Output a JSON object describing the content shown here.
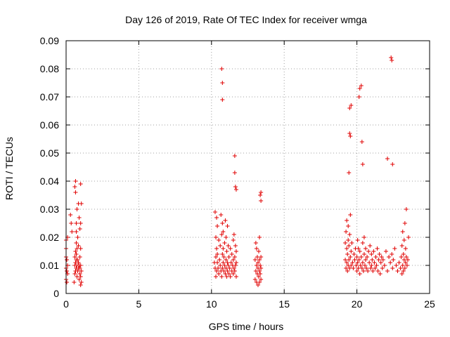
{
  "chart_data": {
    "type": "scatter",
    "title": "Day 126 of 2019, Rate Of TEC Index for receiver wmga",
    "xlabel": "GPS time / hours",
    "ylabel": "ROTI / TECUs",
    "xlim": [
      0,
      25
    ],
    "ylim": [
      0,
      0.09
    ],
    "xticks": [
      "0",
      "5",
      "10",
      "15",
      "20",
      "25"
    ],
    "yticks": [
      "0",
      "0.01",
      "0.02",
      "0.03",
      "0.04",
      "0.05",
      "0.06",
      "0.07",
      "0.08",
      "0.09"
    ],
    "grid": true,
    "marker": "+",
    "color": "#e00000",
    "series": [
      {
        "x": [
          0.0,
          0.0,
          0.0,
          0.0,
          0.0,
          0.05,
          0.05,
          0.05,
          0.1,
          0.1,
          0.1,
          0.3,
          0.35,
          0.4,
          0.55,
          0.6,
          0.6,
          0.6,
          0.6,
          0.65,
          0.65,
          0.65,
          0.65,
          0.65,
          0.7,
          0.7,
          0.7,
          0.7,
          0.7,
          0.7,
          0.75,
          0.75,
          0.75,
          0.75,
          0.8,
          0.8,
          0.8,
          0.85,
          0.85,
          0.85,
          0.85,
          0.9,
          0.9,
          0.9,
          0.95,
          0.95,
          0.95,
          0.95,
          1.0,
          1.0,
          1.0,
          1.0,
          1.0,
          1.0,
          1.05,
          1.05,
          1.05,
          10.2,
          10.25,
          10.25,
          10.3,
          10.3,
          10.3,
          10.35,
          10.35,
          10.35,
          10.4,
          10.4,
          10.4,
          10.45,
          10.5,
          10.5,
          10.55,
          10.6,
          10.6,
          10.65,
          10.65,
          10.7,
          10.7,
          10.75,
          10.75,
          10.75,
          10.8,
          10.8,
          10.8,
          10.85,
          10.85,
          10.9,
          10.9,
          10.95,
          10.95,
          11.0,
          11.0,
          11.0,
          11.05,
          11.05,
          11.1,
          11.1,
          11.1,
          11.15,
          11.15,
          11.2,
          11.2,
          11.25,
          11.3,
          11.3,
          11.35,
          11.4,
          11.4,
          11.45,
          11.5,
          11.5,
          11.5,
          11.55,
          11.55,
          11.6,
          11.6,
          11.65,
          11.65,
          11.7,
          11.7,
          11.7,
          13.0,
          13.0,
          13.05,
          13.05,
          13.1,
          13.1,
          13.1,
          13.15,
          13.15,
          13.2,
          13.2,
          13.2,
          13.25,
          13.25,
          13.3,
          13.3,
          13.3,
          13.3,
          13.35,
          13.35,
          13.4,
          13.4,
          13.4,
          19.2,
          19.2,
          19.25,
          19.25,
          19.3,
          19.3,
          19.3,
          19.35,
          19.35,
          19.4,
          19.4,
          19.4,
          19.45,
          19.45,
          19.5,
          19.5,
          19.55,
          19.55,
          19.6,
          19.6,
          19.65,
          19.7,
          19.75,
          19.8,
          19.85,
          19.9,
          19.95,
          20.0,
          20.0,
          20.05,
          20.05,
          20.1,
          20.1,
          20.15,
          20.2,
          20.2,
          20.25,
          20.3,
          20.35,
          20.4,
          20.4,
          20.45,
          20.5,
          20.5,
          20.55,
          20.6,
          20.6,
          20.65,
          20.7,
          20.75,
          20.8,
          20.85,
          20.9,
          20.95,
          21.0,
          21.0,
          21.05,
          21.1,
          21.15,
          21.2,
          21.25,
          21.3,
          21.35,
          21.4,
          21.45,
          21.5,
          21.55,
          21.6,
          21.65,
          21.7,
          21.75,
          21.8,
          21.9,
          22.0,
          22.1,
          22.2,
          22.3,
          22.4,
          22.45,
          22.5,
          22.6,
          22.7,
          22.8,
          22.9,
          23.0,
          23.05,
          23.1,
          23.1,
          23.15,
          23.15,
          23.2,
          23.2,
          23.25,
          23.25,
          23.3,
          23.3,
          23.35,
          23.35,
          23.4,
          23.4,
          23.45,
          23.5,
          23.55,
          10.7,
          10.75,
          10.75,
          11.6,
          11.6,
          11.65,
          11.7,
          13.35,
          13.4,
          13.4,
          19.45,
          19.5,
          19.5,
          19.55,
          19.6,
          20.15,
          20.2,
          20.3,
          20.35,
          20.4,
          22.35,
          22.4,
          22.45,
          22.1
        ],
        "y": [
          0.005,
          0.009,
          0.013,
          0.016,
          0.019,
          0.004,
          0.008,
          0.012,
          0.007,
          0.01,
          0.02,
          0.028,
          0.025,
          0.022,
          0.004,
          0.007,
          0.01,
          0.013,
          0.038,
          0.008,
          0.011,
          0.015,
          0.036,
          0.04,
          0.009,
          0.012,
          0.014,
          0.018,
          0.022,
          0.025,
          0.006,
          0.01,
          0.016,
          0.03,
          0.008,
          0.012,
          0.02,
          0.009,
          0.011,
          0.017,
          0.032,
          0.005,
          0.01,
          0.027,
          0.007,
          0.009,
          0.013,
          0.023,
          0.003,
          0.006,
          0.01,
          0.016,
          0.025,
          0.039,
          0.004,
          0.008,
          0.032,
          0.011,
          0.009,
          0.029,
          0.006,
          0.013,
          0.02,
          0.008,
          0.016,
          0.027,
          0.011,
          0.014,
          0.024,
          0.009,
          0.007,
          0.019,
          0.012,
          0.01,
          0.017,
          0.008,
          0.028,
          0.006,
          0.021,
          0.009,
          0.014,
          0.025,
          0.011,
          0.016,
          0.022,
          0.008,
          0.013,
          0.01,
          0.018,
          0.007,
          0.026,
          0.009,
          0.012,
          0.02,
          0.006,
          0.015,
          0.008,
          0.011,
          0.024,
          0.01,
          0.017,
          0.007,
          0.013,
          0.009,
          0.006,
          0.016,
          0.011,
          0.008,
          0.014,
          0.01,
          0.007,
          0.012,
          0.019,
          0.009,
          0.021,
          0.008,
          0.013,
          0.01,
          0.017,
          0.006,
          0.011,
          0.015,
          0.005,
          0.012,
          0.008,
          0.018,
          0.004,
          0.01,
          0.016,
          0.007,
          0.013,
          0.003,
          0.009,
          0.011,
          0.006,
          0.015,
          0.004,
          0.008,
          0.012,
          0.02,
          0.007,
          0.01,
          0.005,
          0.009,
          0.013,
          0.012,
          0.018,
          0.009,
          0.022,
          0.011,
          0.016,
          0.026,
          0.008,
          0.014,
          0.01,
          0.019,
          0.024,
          0.012,
          0.017,
          0.009,
          0.021,
          0.013,
          0.028,
          0.01,
          0.015,
          0.018,
          0.011,
          0.009,
          0.014,
          0.012,
          0.016,
          0.01,
          0.013,
          0.008,
          0.011,
          0.019,
          0.009,
          0.016,
          0.012,
          0.007,
          0.015,
          0.01,
          0.013,
          0.009,
          0.011,
          0.018,
          0.008,
          0.014,
          0.02,
          0.01,
          0.012,
          0.016,
          0.009,
          0.013,
          0.008,
          0.015,
          0.011,
          0.017,
          0.009,
          0.01,
          0.014,
          0.012,
          0.008,
          0.015,
          0.011,
          0.009,
          0.013,
          0.01,
          0.016,
          0.008,
          0.012,
          0.014,
          0.007,
          0.011,
          0.013,
          0.009,
          0.012,
          0.01,
          0.015,
          0.008,
          0.013,
          0.011,
          0.014,
          0.009,
          0.012,
          0.016,
          0.01,
          0.008,
          0.011,
          0.009,
          0.013,
          0.007,
          0.017,
          0.01,
          0.022,
          0.008,
          0.014,
          0.012,
          0.019,
          0.009,
          0.025,
          0.011,
          0.016,
          0.013,
          0.03,
          0.01,
          0.012,
          0.02,
          0.08,
          0.075,
          0.069,
          0.049,
          0.043,
          0.038,
          0.037,
          0.035,
          0.033,
          0.036,
          0.043,
          0.057,
          0.066,
          0.056,
          0.067,
          0.07,
          0.073,
          0.074,
          0.054,
          0.046,
          0.084,
          0.083,
          0.046,
          0.048
        ]
      }
    ]
  }
}
